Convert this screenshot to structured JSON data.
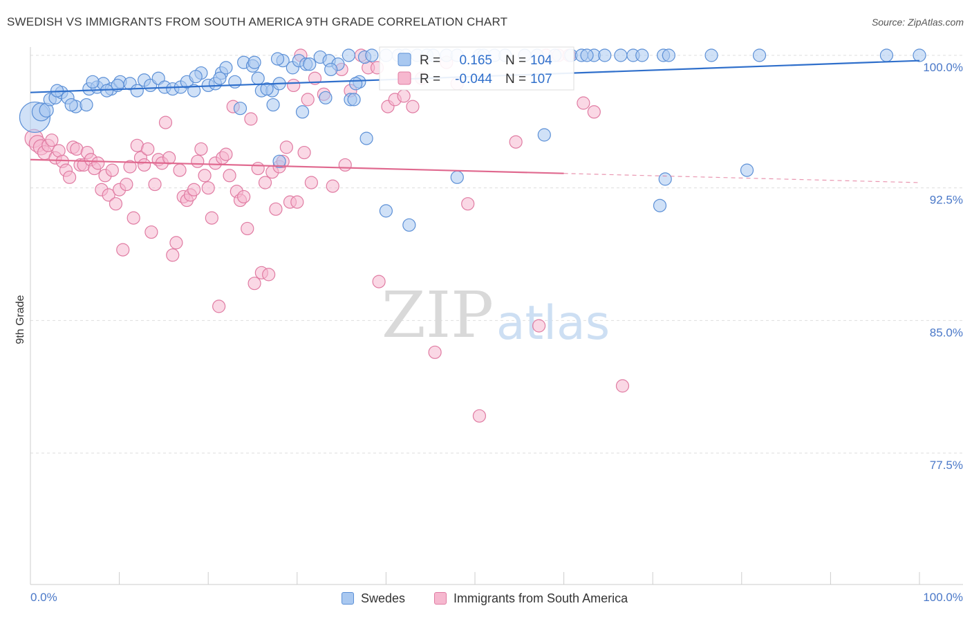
{
  "title": "SWEDISH VS IMMIGRANTS FROM SOUTH AMERICA 9TH GRADE CORRELATION CHART",
  "source": "Source: ZipAtlas.com",
  "watermark": {
    "zip": "ZIP",
    "atlas": "atlas"
  },
  "legend_top": {
    "swedes": {
      "r_label": "R =",
      "r_value": "0.165",
      "n_label": "N =",
      "n_value": "104"
    },
    "immigrants": {
      "r_label": "R =",
      "r_value": "-0.044",
      "n_label": "N =",
      "n_value": "107"
    }
  },
  "legend_bottom": {
    "swedes": "Swedes",
    "immigrants": "Immigrants from South America"
  },
  "colors": {
    "blue_fill": "#a9c8f0",
    "blue_stroke": "#5b8fd6",
    "blue_line": "#2f6fcb",
    "pink_fill": "#f6b8cf",
    "pink_stroke": "#e07ba2",
    "pink_line": "#e0698f",
    "grid": "#dddddd",
    "label_blue": "#4a78c8"
  },
  "chart_data": {
    "type": "scatter",
    "title": "SWEDISH VS IMMIGRANTS FROM SOUTH AMERICA 9TH GRADE CORRELATION CHART",
    "xlabel": "",
    "ylabel": "9th Grade",
    "xlim": [
      0,
      100
    ],
    "ylim": [
      70.0,
      101.0
    ],
    "x_tick_labels": {
      "left": "0.0%",
      "right": "100.0%"
    },
    "y_ticks": [
      {
        "value": 100.0,
        "label": "100.0%"
      },
      {
        "value": 92.5,
        "label": "92.5%"
      },
      {
        "value": 85.0,
        "label": "85.0%"
      },
      {
        "value": 77.5,
        "label": "77.5%"
      }
    ],
    "series": [
      {
        "name": "Swedes",
        "R": 0.165,
        "N": 104,
        "trend": {
          "x": [
            0,
            100
          ],
          "y": [
            97.9,
            99.7
          ],
          "solid_to": 100
        },
        "points": [
          [
            0.5,
            96.5,
            22
          ],
          [
            1.2,
            96.8,
            13
          ],
          [
            1.8,
            96.9,
            10
          ],
          [
            2.2,
            97.5,
            9
          ],
          [
            2.8,
            97.6,
            9
          ],
          [
            3.5,
            97.9,
            9
          ],
          [
            4.2,
            97.6,
            9
          ],
          [
            5.1,
            97.1,
            9
          ],
          [
            6.3,
            97.2,
            9
          ],
          [
            6.6,
            98.1,
            9
          ],
          [
            7.5,
            98.2,
            9
          ],
          [
            8.2,
            98.4,
            9
          ],
          [
            9.1,
            98.1,
            9
          ],
          [
            10.1,
            98.5,
            9
          ],
          [
            11.2,
            98.4,
            9
          ],
          [
            12.0,
            98.0,
            9
          ],
          [
            12.8,
            98.6,
            9
          ],
          [
            13.5,
            98.3,
            9
          ],
          [
            14.4,
            98.7,
            9
          ],
          [
            15.1,
            98.2,
            9
          ],
          [
            16.0,
            98.1,
            9
          ],
          [
            16.9,
            98.2,
            9
          ],
          [
            17.6,
            98.5,
            9
          ],
          [
            18.4,
            98.0,
            9
          ],
          [
            19.2,
            99.0,
            9
          ],
          [
            20.0,
            98.3,
            9
          ],
          [
            20.8,
            98.4,
            9
          ],
          [
            21.5,
            99.0,
            9
          ],
          [
            22.0,
            99.3,
            9
          ],
          [
            23.0,
            98.5,
            9
          ],
          [
            24.0,
            99.6,
            9
          ],
          [
            25.0,
            99.4,
            9
          ],
          [
            26.0,
            98.0,
            9
          ],
          [
            27.2,
            98.0,
            9
          ],
          [
            28.4,
            99.7,
            9
          ],
          [
            29.5,
            99.3,
            9
          ],
          [
            30.2,
            99.7,
            9
          ],
          [
            31.0,
            99.5,
            9
          ],
          [
            32.6,
            99.9,
            9
          ],
          [
            33.6,
            99.7,
            9
          ],
          [
            34.6,
            99.5,
            9
          ],
          [
            35.8,
            100.0,
            9
          ],
          [
            37.0,
            98.5,
            9
          ],
          [
            37.6,
            99.9,
            9
          ],
          [
            38.4,
            100.0,
            9
          ],
          [
            40.0,
            100.0,
            9
          ],
          [
            41.4,
            100.0,
            9
          ],
          [
            42.2,
            100.0,
            9
          ],
          [
            43.5,
            100.0,
            9
          ],
          [
            44.6,
            100.0,
            9
          ],
          [
            45.3,
            100.0,
            9
          ],
          [
            46.8,
            100.0,
            9
          ],
          [
            48.0,
            100.0,
            9
          ],
          [
            50.5,
            100.0,
            9
          ],
          [
            51.0,
            100.0,
            9
          ],
          [
            52.2,
            100.0,
            9
          ],
          [
            53.4,
            100.0,
            9
          ],
          [
            55.6,
            100.0,
            9
          ],
          [
            57.0,
            100.0,
            9
          ],
          [
            59.0,
            100.0,
            9
          ],
          [
            60.8,
            100.0,
            9
          ],
          [
            62.0,
            100.0,
            9
          ],
          [
            63.4,
            100.0,
            9
          ],
          [
            67.8,
            100.0,
            9
          ],
          [
            71.2,
            100.0,
            9
          ],
          [
            76.6,
            100.0,
            9
          ],
          [
            82.0,
            100.0,
            9
          ],
          [
            96.3,
            100.0,
            9
          ],
          [
            100.0,
            100.0,
            9
          ],
          [
            25.6,
            98.7,
            9
          ],
          [
            28.0,
            98.4,
            9
          ],
          [
            23.6,
            97.0,
            9
          ],
          [
            26.6,
            98.1,
            9
          ],
          [
            27.3,
            97.2,
            9
          ],
          [
            30.6,
            96.8,
            9
          ],
          [
            36.6,
            98.4,
            9
          ],
          [
            36.0,
            97.5,
            9
          ],
          [
            33.2,
            97.6,
            9
          ],
          [
            33.8,
            99.2,
            9
          ],
          [
            31.4,
            99.5,
            9
          ],
          [
            27.8,
            99.8,
            9
          ],
          [
            25.2,
            99.6,
            9
          ],
          [
            21.3,
            98.7,
            9
          ],
          [
            18.6,
            98.8,
            9
          ],
          [
            9.8,
            98.3,
            9
          ],
          [
            8.6,
            98.0,
            9
          ],
          [
            7.0,
            98.5,
            9
          ],
          [
            4.6,
            97.2,
            9
          ],
          [
            3.0,
            98.0,
            9
          ],
          [
            36.4,
            97.5,
            9
          ],
          [
            37.8,
            95.3,
            9
          ],
          [
            57.8,
            95.5,
            9
          ],
          [
            71.4,
            93.0,
            9
          ],
          [
            28.0,
            94.0,
            9
          ],
          [
            48.0,
            93.1,
            9
          ],
          [
            40.0,
            91.2,
            9
          ],
          [
            42.6,
            90.4,
            9
          ],
          [
            70.8,
            91.5,
            9
          ],
          [
            62.6,
            100.0,
            9
          ],
          [
            64.6,
            100.0,
            9
          ],
          [
            66.4,
            100.0,
            9
          ],
          [
            68.8,
            100.0,
            9
          ],
          [
            71.8,
            100.0,
            9
          ],
          [
            80.6,
            93.5,
            9
          ]
        ]
      },
      {
        "name": "Immigrants from South America",
        "R": -0.044,
        "N": 107,
        "trend": {
          "x": [
            0,
            100
          ],
          "y": [
            94.1,
            92.8
          ],
          "solid_to": 60
        },
        "points": [
          [
            0.4,
            95.3,
            13
          ],
          [
            0.8,
            95.0,
            12
          ],
          [
            1.2,
            94.8,
            11
          ],
          [
            1.6,
            94.5,
            10
          ],
          [
            2.0,
            94.9,
            9
          ],
          [
            2.4,
            95.2,
            9
          ],
          [
            2.8,
            94.2,
            9
          ],
          [
            3.2,
            94.6,
            9
          ],
          [
            3.6,
            94.0,
            9
          ],
          [
            4.0,
            93.5,
            9
          ],
          [
            4.4,
            93.1,
            9
          ],
          [
            4.8,
            94.8,
            9
          ],
          [
            5.2,
            94.7,
            9
          ],
          [
            5.6,
            93.8,
            9
          ],
          [
            6.0,
            93.8,
            9
          ],
          [
            6.4,
            94.5,
            9
          ],
          [
            6.8,
            94.1,
            9
          ],
          [
            7.2,
            93.6,
            9
          ],
          [
            7.6,
            93.9,
            9
          ],
          [
            8.0,
            92.4,
            9
          ],
          [
            8.4,
            93.2,
            9
          ],
          [
            8.8,
            92.1,
            9
          ],
          [
            9.2,
            93.5,
            9
          ],
          [
            9.6,
            91.6,
            9
          ],
          [
            10.0,
            92.4,
            9
          ],
          [
            10.4,
            89.0,
            9
          ],
          [
            10.8,
            92.7,
            9
          ],
          [
            11.2,
            93.7,
            9
          ],
          [
            11.6,
            90.8,
            9
          ],
          [
            12.0,
            94.9,
            9
          ],
          [
            12.4,
            94.2,
            9
          ],
          [
            12.8,
            93.8,
            9
          ],
          [
            13.2,
            94.7,
            9
          ],
          [
            13.6,
            90.0,
            9
          ],
          [
            14.0,
            92.7,
            9
          ],
          [
            14.4,
            94.1,
            9
          ],
          [
            14.8,
            93.9,
            9
          ],
          [
            15.2,
            96.2,
            9
          ],
          [
            15.6,
            94.2,
            9
          ],
          [
            16.0,
            88.7,
            9
          ],
          [
            16.4,
            89.4,
            9
          ],
          [
            16.8,
            93.5,
            9
          ],
          [
            17.2,
            92.0,
            9
          ],
          [
            17.6,
            91.8,
            9
          ],
          [
            18.0,
            92.1,
            9
          ],
          [
            18.4,
            92.4,
            9
          ],
          [
            18.8,
            94.0,
            9
          ],
          [
            19.2,
            94.7,
            9
          ],
          [
            19.6,
            93.2,
            9
          ],
          [
            20.0,
            92.5,
            9
          ],
          [
            20.4,
            90.8,
            9
          ],
          [
            20.8,
            93.9,
            9
          ],
          [
            21.2,
            85.8,
            9
          ],
          [
            21.6,
            94.2,
            9
          ],
          [
            22.0,
            94.4,
            9
          ],
          [
            22.4,
            93.2,
            9
          ],
          [
            22.8,
            97.1,
            9
          ],
          [
            23.2,
            92.3,
            9
          ],
          [
            23.6,
            91.8,
            9
          ],
          [
            24.0,
            92.0,
            9
          ],
          [
            24.4,
            90.2,
            9
          ],
          [
            24.8,
            96.4,
            9
          ],
          [
            25.2,
            87.1,
            9
          ],
          [
            25.6,
            93.6,
            9
          ],
          [
            26.0,
            87.7,
            9
          ],
          [
            26.4,
            92.8,
            9
          ],
          [
            26.8,
            87.6,
            9
          ],
          [
            27.2,
            93.4,
            9
          ],
          [
            27.6,
            91.3,
            9
          ],
          [
            28.0,
            93.7,
            9
          ],
          [
            28.4,
            94.0,
            9
          ],
          [
            28.8,
            94.8,
            9
          ],
          [
            29.2,
            91.7,
            9
          ],
          [
            29.6,
            98.3,
            9
          ],
          [
            30.0,
            91.7,
            9
          ],
          [
            30.4,
            100.0,
            9
          ],
          [
            30.8,
            94.5,
            9
          ],
          [
            31.2,
            97.5,
            9
          ],
          [
            31.6,
            92.8,
            9
          ],
          [
            32.0,
            98.7,
            9
          ],
          [
            33.0,
            97.8,
            9
          ],
          [
            34.0,
            92.6,
            9
          ],
          [
            35.0,
            99.2,
            9
          ],
          [
            36.0,
            98.0,
            9
          ],
          [
            37.2,
            100.0,
            9
          ],
          [
            38.0,
            99.3,
            9
          ],
          [
            39.0,
            99.3,
            9
          ],
          [
            40.2,
            97.1,
            9
          ],
          [
            41.0,
            97.5,
            9
          ],
          [
            42.0,
            97.7,
            9
          ],
          [
            43.0,
            97.1,
            9
          ],
          [
            44.0,
            98.7,
            9
          ],
          [
            45.5,
            83.2,
            9
          ],
          [
            46.8,
            99.6,
            9
          ],
          [
            48.0,
            98.4,
            9
          ],
          [
            49.2,
            91.6,
            9
          ],
          [
            50.5,
            79.6,
            9
          ],
          [
            54.6,
            95.1,
            9
          ],
          [
            57.2,
            84.7,
            9
          ],
          [
            58.0,
            100.0,
            9
          ],
          [
            59.4,
            100.0,
            9
          ],
          [
            60.6,
            100.0,
            9
          ],
          [
            62.2,
            97.3,
            9
          ],
          [
            63.4,
            96.8,
            9
          ],
          [
            66.6,
            81.3,
            9
          ],
          [
            39.2,
            87.2,
            9
          ],
          [
            35.4,
            93.8,
            9
          ]
        ]
      }
    ]
  }
}
